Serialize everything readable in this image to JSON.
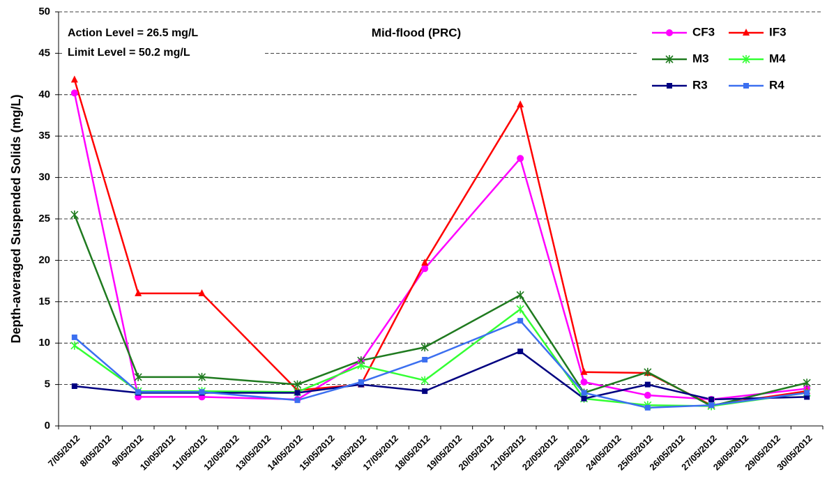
{
  "chart_data": {
    "type": "line",
    "title": "Mid-flood (PRC)",
    "annotations": [
      "Action Level = 26.5 mg/L",
      "Limit Level = 50.2 mg/L"
    ],
    "y_label": "Depth-averaged Suspended Solids (mg/L)",
    "x": [
      "7/05/2012",
      "9/05/2012",
      "11/05/2012",
      "14/05/2012",
      "16/05/2012",
      "18/05/2012",
      "21/05/2012",
      "23/05/2012",
      "25/05/2012",
      "27/05/2012",
      "30/05/2012"
    ],
    "xlim": [
      "7/05/2012",
      "30/05/2012"
    ],
    "xticks": [
      "7/05/2012",
      "8/05/2012",
      "9/05/2012",
      "10/05/2012",
      "11/05/2012",
      "12/05/2012",
      "13/05/2012",
      "14/05/2012",
      "15/05/2012",
      "16/05/2012",
      "17/05/2012",
      "18/05/2012",
      "19/05/2012",
      "20/05/2012",
      "21/05/2012",
      "22/05/2012",
      "23/05/2012",
      "24/05/2012",
      "25/05/2012",
      "26/05/2012",
      "27/05/2012",
      "28/05/2012",
      "29/05/2012",
      "30/05/2012"
    ],
    "ylim": [
      0,
      50
    ],
    "yticks": [
      0,
      5,
      10,
      15,
      20,
      25,
      30,
      35,
      40,
      45,
      50
    ],
    "grid": true,
    "legend": "upper right",
    "series": [
      {
        "name": "CF3",
        "color": "#ff00ff",
        "marker": "circle",
        "values": [
          40.2,
          3.5,
          3.5,
          3.2,
          7.8,
          19.0,
          32.3,
          5.3,
          3.7,
          3.2,
          4.5
        ]
      },
      {
        "name": "IF3",
        "color": "#ff0000",
        "marker": "triangle",
        "values": [
          41.8,
          16.0,
          16.0,
          4.3,
          5.0,
          19.7,
          38.8,
          6.5,
          6.4,
          2.5,
          4.2
        ]
      },
      {
        "name": "M3",
        "color": "#1f7a1f",
        "marker": "star",
        "values": [
          25.5,
          5.9,
          5.9,
          5.0,
          7.9,
          9.5,
          15.8,
          4.0,
          6.5,
          2.4,
          5.2
        ]
      },
      {
        "name": "M4",
        "color": "#33ff33",
        "marker": "star",
        "values": [
          9.7,
          4.2,
          4.2,
          4.1,
          7.3,
          5.5,
          14.1,
          3.3,
          2.5,
          2.4,
          4.0
        ]
      },
      {
        "name": "R3",
        "color": "#000080",
        "marker": "square",
        "values": [
          4.8,
          4.0,
          4.0,
          4.0,
          5.0,
          4.2,
          9.0,
          3.3,
          5.0,
          3.2,
          3.5
        ]
      },
      {
        "name": "R4",
        "color": "#3b6ff0",
        "marker": "square",
        "values": [
          10.7,
          4.1,
          4.1,
          3.1,
          5.3,
          8.0,
          12.7,
          4.0,
          2.2,
          2.5,
          4.0
        ]
      }
    ]
  }
}
